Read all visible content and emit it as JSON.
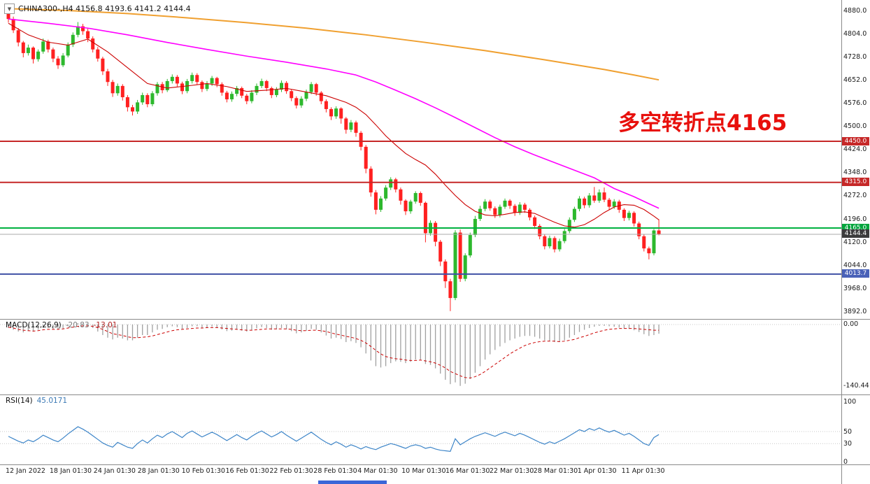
{
  "header": {
    "symbol_info": "CHINA300-,H4 4156.8 4193.6 4141.2 4144.4",
    "dropdown_icon": "▼"
  },
  "annotation": {
    "text": "多空转折点4165"
  },
  "colors": {
    "candle_up": "#2db82d",
    "candle_down": "#ff2020",
    "ma_slow": "#f0a030",
    "ma_mid": "#ff00ff",
    "ma_fast": "#cc0000",
    "macd_hist": "#a0a0a0",
    "macd_signal": "#cc0000",
    "rsi_line": "#3d85c8"
  },
  "hlines": [
    {
      "price": 4450.0,
      "label": "4450.0",
      "line": "#c62828",
      "badge": "#c62828",
      "width": 2
    },
    {
      "price": 4315.0,
      "label": "4315.0",
      "line": "#c62828",
      "badge": "#c62828",
      "width": 2
    },
    {
      "price": 4165.0,
      "label": "4165.0",
      "line": "#00b140",
      "badge": "#00a53c",
      "width": 2
    },
    {
      "price": 4144.4,
      "label": "4144.4",
      "line": "#aaaaaa",
      "badge": "#3c3c3c",
      "width": 1
    },
    {
      "price": 4013.7,
      "label": "4013.7",
      "line": "#3f51a5",
      "badge": "#4a62b8",
      "width": 2
    }
  ],
  "panels": {
    "macd": {
      "label": "MACD(12,26,9)",
      "value_main": "-20.83",
      "value_signal": "-13.01",
      "scale_zero": "0.00",
      "scale_min": "-140.44"
    },
    "rsi": {
      "label": "RSI(14)",
      "value": "45.0171",
      "scale": [
        "100",
        "50",
        "30",
        "0"
      ]
    }
  },
  "chart_data": {
    "type": "candlestick",
    "symbol": "CHINA300-",
    "timeframe": "H4",
    "last_bar_ohlc_display": "4156.8 4193.6 4141.2 4144.4",
    "y_ticks": [
      "4880.0",
      "4804.0",
      "4728.0",
      "4652.0",
      "4576.0",
      "4500.0",
      "4424.0",
      "4348.0",
      "4272.0",
      "4196.0",
      "4120.0",
      "4044.0",
      "3968.0",
      "3892.0"
    ],
    "y_tick_values": [
      4880,
      4804,
      4728,
      4652,
      4576,
      4500,
      4424,
      4348,
      4272,
      4196,
      4120,
      4044,
      3968,
      3892
    ],
    "x_ticks": [
      "12 Jan 2022",
      "18 Jan 01:30",
      "24 Jan 01:30",
      "28 Jan 01:30",
      "10 Feb 01:30",
      "16 Feb 01:30",
      "22 Feb 01:30",
      "28 Feb 01:30",
      "4 Mar 01:30",
      "10 Mar 01:30",
      "16 Mar 01:30",
      "22 Mar 01:30",
      "28 Mar 01:30",
      "1 Apr 01:30",
      "11 Apr 01:30"
    ],
    "ohlc": [
      [
        4878,
        4882,
        4840,
        4852
      ],
      [
        4852,
        4860,
        4806,
        4815
      ],
      [
        4815,
        4822,
        4762,
        4775
      ],
      [
        4775,
        4780,
        4726,
        4740
      ],
      [
        4740,
        4768,
        4732,
        4758
      ],
      [
        4758,
        4762,
        4706,
        4720
      ],
      [
        4720,
        4752,
        4712,
        4745
      ],
      [
        4745,
        4788,
        4738,
        4778
      ],
      [
        4778,
        4784,
        4742,
        4752
      ],
      [
        4752,
        4758,
        4710,
        4722
      ],
      [
        4722,
        4730,
        4688,
        4700
      ],
      [
        4700,
        4740,
        4694,
        4732
      ],
      [
        4732,
        4775,
        4726,
        4768
      ],
      [
        4768,
        4808,
        4760,
        4800
      ],
      [
        4800,
        4842,
        4792,
        4828
      ],
      [
        4828,
        4836,
        4800,
        4812
      ],
      [
        4812,
        4820,
        4776,
        4788
      ],
      [
        4788,
        4795,
        4742,
        4752
      ],
      [
        4752,
        4760,
        4712,
        4722
      ],
      [
        4722,
        4728,
        4668,
        4680
      ],
      [
        4680,
        4688,
        4632,
        4645
      ],
      [
        4645,
        4652,
        4596,
        4608
      ],
      [
        4608,
        4640,
        4600,
        4632
      ],
      [
        4632,
        4638,
        4584,
        4595
      ],
      [
        4595,
        4602,
        4548,
        4562
      ],
      [
        4562,
        4570,
        4535,
        4548
      ],
      [
        4548,
        4586,
        4540,
        4578
      ],
      [
        4578,
        4610,
        4570,
        4602
      ],
      [
        4602,
        4608,
        4562,
        4572
      ],
      [
        4572,
        4615,
        4565,
        4608
      ],
      [
        4608,
        4645,
        4600,
        4638
      ],
      [
        4638,
        4645,
        4608,
        4618
      ],
      [
        4618,
        4655,
        4612,
        4648
      ],
      [
        4648,
        4670,
        4640,
        4662
      ],
      [
        4662,
        4668,
        4630,
        4640
      ],
      [
        4640,
        4646,
        4605,
        4615
      ],
      [
        4615,
        4655,
        4608,
        4648
      ],
      [
        4648,
        4676,
        4640,
        4668
      ],
      [
        4668,
        4674,
        4636,
        4645
      ],
      [
        4645,
        4650,
        4612,
        4622
      ],
      [
        4622,
        4648,
        4615,
        4640
      ],
      [
        4640,
        4665,
        4632,
        4658
      ],
      [
        4658,
        4662,
        4628,
        4638
      ],
      [
        4638,
        4644,
        4600,
        4610
      ],
      [
        4610,
        4616,
        4578,
        4588
      ],
      [
        4588,
        4614,
        4580,
        4606
      ],
      [
        4606,
        4632,
        4598,
        4625
      ],
      [
        4625,
        4630,
        4592,
        4600
      ],
      [
        4600,
        4606,
        4572,
        4582
      ],
      [
        4582,
        4618,
        4575,
        4610
      ],
      [
        4610,
        4640,
        4602,
        4632
      ],
      [
        4632,
        4656,
        4625,
        4648
      ],
      [
        4648,
        4652,
        4615,
        4625
      ],
      [
        4625,
        4630,
        4592,
        4602
      ],
      [
        4602,
        4628,
        4595,
        4620
      ],
      [
        4620,
        4650,
        4612,
        4642
      ],
      [
        4642,
        4648,
        4606,
        4615
      ],
      [
        4615,
        4620,
        4582,
        4592
      ],
      [
        4592,
        4598,
        4558,
        4568
      ],
      [
        4568,
        4598,
        4560,
        4590
      ],
      [
        4590,
        4620,
        4582,
        4612
      ],
      [
        4612,
        4645,
        4605,
        4638
      ],
      [
        4638,
        4642,
        4600,
        4610
      ],
      [
        4610,
        4615,
        4572,
        4582
      ],
      [
        4582,
        4588,
        4545,
        4556
      ],
      [
        4556,
        4562,
        4520,
        4532
      ],
      [
        4532,
        4565,
        4524,
        4558
      ],
      [
        4558,
        4562,
        4508,
        4525
      ],
      [
        4525,
        4530,
        4475,
        4488
      ],
      [
        4488,
        4520,
        4480,
        4512
      ],
      [
        4512,
        4518,
        4465,
        4478
      ],
      [
        4478,
        4484,
        4420,
        4432
      ],
      [
        4432,
        4438,
        4345,
        4360
      ],
      [
        4360,
        4368,
        4268,
        4282
      ],
      [
        4282,
        4290,
        4210,
        4225
      ],
      [
        4225,
        4270,
        4218,
        4262
      ],
      [
        4262,
        4306,
        4255,
        4298
      ],
      [
        4298,
        4332,
        4290,
        4325
      ],
      [
        4325,
        4330,
        4282,
        4292
      ],
      [
        4292,
        4298,
        4242,
        4255
      ],
      [
        4255,
        4260,
        4208,
        4220
      ],
      [
        4220,
        4258,
        4212,
        4252
      ],
      [
        4252,
        4286,
        4245,
        4280
      ],
      [
        4280,
        4285,
        4238,
        4248
      ],
      [
        4248,
        4252,
        4118,
        4148
      ],
      [
        4148,
        4190,
        4140,
        4182
      ],
      [
        4182,
        4188,
        4105,
        4120
      ],
      [
        4120,
        4126,
        4040,
        4055
      ],
      [
        4055,
        4062,
        3968,
        3990
      ],
      [
        3990,
        3998,
        3892,
        3935
      ],
      [
        3935,
        4158,
        3928,
        4150
      ],
      [
        4150,
        4160,
        3988,
        3998
      ],
      [
        3998,
        4082,
        3990,
        4075
      ],
      [
        4075,
        4150,
        4068,
        4142
      ],
      [
        4142,
        4205,
        4135,
        4195
      ],
      [
        4195,
        4238,
        4188,
        4228
      ],
      [
        4228,
        4260,
        4220,
        4252
      ],
      [
        4252,
        4258,
        4222,
        4230
      ],
      [
        4230,
        4236,
        4198,
        4208
      ],
      [
        4208,
        4242,
        4200,
        4235
      ],
      [
        4235,
        4262,
        4228,
        4255
      ],
      [
        4255,
        4260,
        4228,
        4238
      ],
      [
        4238,
        4244,
        4205,
        4215
      ],
      [
        4215,
        4250,
        4208,
        4242
      ],
      [
        4242,
        4248,
        4215,
        4225
      ],
      [
        4225,
        4230,
        4190,
        4200
      ],
      [
        4200,
        4206,
        4162,
        4172
      ],
      [
        4172,
        4178,
        4128,
        4138
      ],
      [
        4138,
        4144,
        4095,
        4105
      ],
      [
        4105,
        4140,
        4098,
        4132
      ],
      [
        4132,
        4138,
        4085,
        4095
      ],
      [
        4095,
        4130,
        4088,
        4122
      ],
      [
        4122,
        4162,
        4115,
        4155
      ],
      [
        4155,
        4200,
        4148,
        4192
      ],
      [
        4192,
        4235,
        4185,
        4228
      ],
      [
        4228,
        4270,
        4220,
        4262
      ],
      [
        4262,
        4268,
        4230,
        4240
      ],
      [
        4240,
        4280,
        4232,
        4272
      ],
      [
        4272,
        4300,
        4248,
        4255
      ],
      [
        4255,
        4292,
        4248,
        4282
      ],
      [
        4282,
        4298,
        4250,
        4258
      ],
      [
        4258,
        4264,
        4225,
        4235
      ],
      [
        4235,
        4260,
        4228,
        4252
      ],
      [
        4252,
        4258,
        4215,
        4225
      ],
      [
        4225,
        4230,
        4188,
        4198
      ],
      [
        4198,
        4222,
        4190,
        4215
      ],
      [
        4215,
        4220,
        4170,
        4180
      ],
      [
        4180,
        4186,
        4128,
        4138
      ],
      [
        4138,
        4144,
        4088,
        4098
      ],
      [
        4098,
        4104,
        4062,
        4082
      ],
      [
        4082,
        4162,
        4075,
        4157
      ],
      [
        4157,
        4194,
        4141,
        4144
      ]
    ],
    "ma_slow_orange": [
      [
        0,
        4886
      ],
      [
        12,
        4880
      ],
      [
        24,
        4870
      ],
      [
        36,
        4856
      ],
      [
        48,
        4840
      ],
      [
        60,
        4822
      ],
      [
        72,
        4800
      ],
      [
        84,
        4775
      ],
      [
        96,
        4748
      ],
      [
        108,
        4718
      ],
      [
        120,
        4686
      ],
      [
        126,
        4668
      ],
      [
        131,
        4652
      ]
    ],
    "ma_mid_magenta": [
      [
        0,
        4852
      ],
      [
        8,
        4838
      ],
      [
        16,
        4822
      ],
      [
        24,
        4800
      ],
      [
        32,
        4775
      ],
      [
        40,
        4752
      ],
      [
        48,
        4730
      ],
      [
        56,
        4710
      ],
      [
        64,
        4688
      ],
      [
        70,
        4668
      ],
      [
        74,
        4645
      ],
      [
        78,
        4618
      ],
      [
        82,
        4590
      ],
      [
        86,
        4560
      ],
      [
        90,
        4528
      ],
      [
        94,
        4495
      ],
      [
        98,
        4462
      ],
      [
        102,
        4432
      ],
      [
        106,
        4405
      ],
      [
        110,
        4380
      ],
      [
        114,
        4355
      ],
      [
        118,
        4330
      ],
      [
        122,
        4295
      ],
      [
        126,
        4268
      ],
      [
        129,
        4245
      ],
      [
        131,
        4230
      ]
    ],
    "ma_fast_red": [
      [
        0,
        4838
      ],
      [
        4,
        4800
      ],
      [
        8,
        4776
      ],
      [
        12,
        4766
      ],
      [
        16,
        4786
      ],
      [
        20,
        4744
      ],
      [
        24,
        4692
      ],
      [
        28,
        4640
      ],
      [
        32,
        4625
      ],
      [
        36,
        4632
      ],
      [
        40,
        4640
      ],
      [
        44,
        4630
      ],
      [
        48,
        4614
      ],
      [
        52,
        4618
      ],
      [
        56,
        4624
      ],
      [
        60,
        4612
      ],
      [
        64,
        4600
      ],
      [
        68,
        4578
      ],
      [
        70,
        4562
      ],
      [
        72,
        4538
      ],
      [
        74,
        4504
      ],
      [
        76,
        4468
      ],
      [
        78,
        4438
      ],
      [
        80,
        4410
      ],
      [
        82,
        4390
      ],
      [
        84,
        4372
      ],
      [
        86,
        4342
      ],
      [
        88,
        4306
      ],
      [
        90,
        4272
      ],
      [
        92,
        4242
      ],
      [
        94,
        4220
      ],
      [
        96,
        4208
      ],
      [
        98,
        4205
      ],
      [
        100,
        4210
      ],
      [
        102,
        4216
      ],
      [
        104,
        4218
      ],
      [
        106,
        4213
      ],
      [
        108,
        4198
      ],
      [
        110,
        4184
      ],
      [
        112,
        4172
      ],
      [
        114,
        4168
      ],
      [
        116,
        4176
      ],
      [
        118,
        4194
      ],
      [
        120,
        4216
      ],
      [
        122,
        4234
      ],
      [
        124,
        4242
      ],
      [
        126,
        4240
      ],
      [
        128,
        4226
      ],
      [
        130,
        4204
      ],
      [
        131,
        4192
      ]
    ],
    "macd_hist": [
      -8,
      -12,
      -16,
      -18,
      -15,
      -16,
      -12,
      -8,
      -8,
      -10,
      -12,
      -9,
      -4,
      0,
      3,
      2,
      -2,
      -8,
      -16,
      -24,
      -30,
      -34,
      -30,
      -32,
      -36,
      -36,
      -30,
      -24,
      -24,
      -18,
      -12,
      -10,
      -6,
      -4,
      -6,
      -10,
      -8,
      -4,
      -4,
      -7,
      -7,
      -5,
      -7,
      -11,
      -15,
      -14,
      -12,
      -14,
      -16,
      -13,
      -9,
      -6,
      -8,
      -12,
      -11,
      -8,
      -11,
      -15,
      -20,
      -18,
      -14,
      -10,
      -12,
      -18,
      -25,
      -32,
      -30,
      -33,
      -40,
      -38,
      -42,
      -52,
      -66,
      -82,
      -95,
      -98,
      -95,
      -88,
      -84,
      -85,
      -88,
      -85,
      -80,
      -80,
      -90,
      -92,
      -100,
      -112,
      -126,
      -136,
      -132,
      -140,
      -135,
      -124,
      -110,
      -95,
      -80,
      -68,
      -58,
      -50,
      -42,
      -36,
      -32,
      -28,
      -26,
      -26,
      -28,
      -32,
      -36,
      -38,
      -40,
      -40,
      -36,
      -30,
      -24,
      -17,
      -12,
      -8,
      -5,
      -3,
      -3,
      -4,
      -5,
      -7,
      -9,
      -10,
      -13,
      -17,
      -22,
      -26,
      -24,
      -21
    ],
    "macd_signal": [
      -6,
      -8,
      -11,
      -13,
      -14,
      -15,
      -14,
      -12,
      -11,
      -11,
      -11,
      -10,
      -8,
      -6,
      -4,
      -3,
      -3,
      -4,
      -7,
      -11,
      -16,
      -21,
      -23,
      -25,
      -28,
      -30,
      -30,
      -29,
      -28,
      -26,
      -23,
      -20,
      -17,
      -14,
      -12,
      -11,
      -10,
      -9,
      -8,
      -8,
      -7,
      -7,
      -7,
      -8,
      -9,
      -10,
      -11,
      -12,
      -13,
      -13,
      -12,
      -11,
      -10,
      -10,
      -10,
      -10,
      -10,
      -11,
      -13,
      -14,
      -14,
      -13,
      -13,
      -14,
      -16,
      -19,
      -22,
      -24,
      -27,
      -29,
      -32,
      -36,
      -42,
      -50,
      -59,
      -67,
      -73,
      -76,
      -78,
      -79,
      -81,
      -82,
      -82,
      -81,
      -83,
      -85,
      -88,
      -93,
      -99,
      -107,
      -112,
      -117,
      -121,
      -122,
      -119,
      -114,
      -107,
      -99,
      -91,
      -83,
      -75,
      -67,
      -60,
      -54,
      -48,
      -44,
      -41,
      -39,
      -38,
      -38,
      -38,
      -39,
      -38,
      -36,
      -34,
      -30,
      -27,
      -23,
      -19,
      -16,
      -13,
      -11,
      -10,
      -9,
      -9,
      -9,
      -9,
      -10,
      -11,
      -12,
      -13,
      -13
    ],
    "rsi": [
      42,
      38,
      34,
      31,
      36,
      33,
      38,
      44,
      40,
      36,
      33,
      39,
      46,
      52,
      58,
      54,
      49,
      43,
      37,
      31,
      27,
      24,
      32,
      28,
      24,
      22,
      30,
      36,
      31,
      38,
      44,
      40,
      46,
      50,
      45,
      40,
      47,
      51,
      46,
      41,
      45,
      49,
      45,
      40,
      35,
      40,
      45,
      40,
      36,
      42,
      47,
      51,
      46,
      41,
      45,
      50,
      44,
      39,
      34,
      39,
      44,
      49,
      43,
      37,
      32,
      28,
      33,
      29,
      24,
      28,
      25,
      21,
      25,
      22,
      20,
      24,
      27,
      30,
      28,
      25,
      22,
      26,
      28,
      26,
      22,
      24,
      21,
      19,
      18,
      17,
      38,
      28,
      33,
      38,
      42,
      45,
      48,
      45,
      42,
      46,
      49,
      46,
      43,
      47,
      44,
      40,
      36,
      32,
      29,
      33,
      30,
      34,
      38,
      43,
      48,
      53,
      50,
      55,
      52,
      56,
      52,
      49,
      52,
      48,
      44,
      47,
      42,
      36,
      30,
      27,
      40,
      45
    ]
  }
}
